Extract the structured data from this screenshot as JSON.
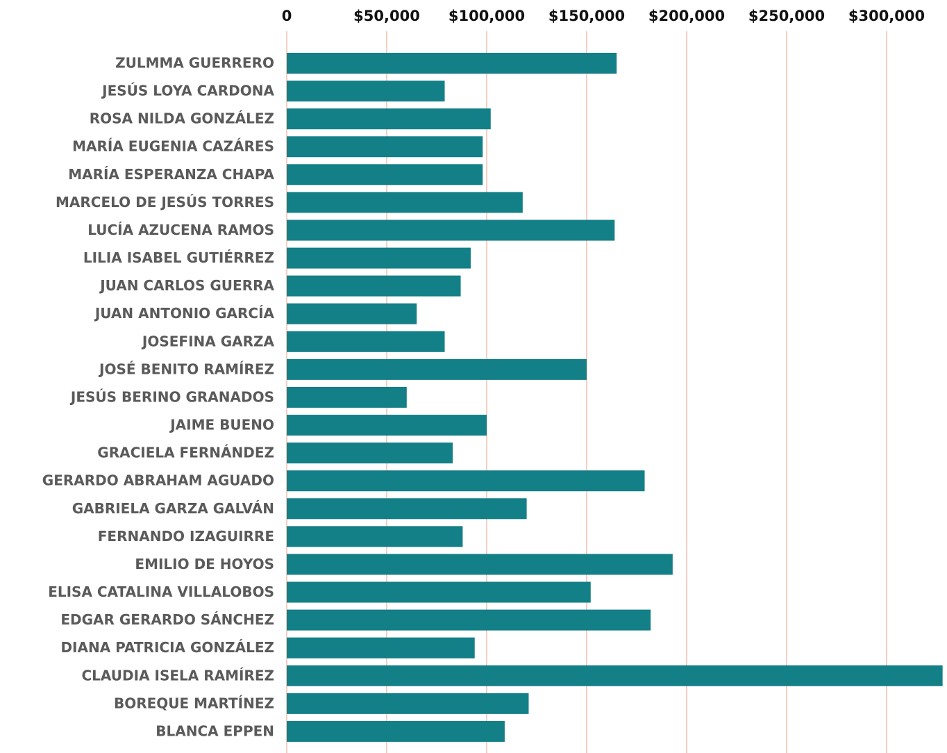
{
  "chart_data": {
    "type": "bar",
    "orientation": "horizontal",
    "categories": [
      "ZULMMA GUERRERO",
      "JESÚS LOYA CARDONA",
      "ROSA NILDA GONZÁLEZ",
      "MARÍA EUGENIA CAZÁRES",
      "MARÍA ESPERANZA CHAPA",
      "MARCELO DE JESÚS TORRES",
      "LUCÍA AZUCENA RAMOS",
      "LILIA ISABEL GUTIÉRREZ",
      "JUAN CARLOS GUERRA",
      "JUAN ANTONIO GARCÍA",
      "JOSEFINA GARZA",
      "JOSÉ BENITO RAMÍREZ",
      "JESÚS BERINO GRANADOS",
      "JAIME BUENO",
      "GRACIELA FERNÁNDEZ",
      "GERARDO ABRAHAM AGUADO",
      "GABRIELA GARZA GALVÁN",
      "FERNANDO IZAGUIRRE",
      "EMILIO DE HOYOS",
      "ELISA CATALINA VILLALOBOS",
      "EDGAR GERARDO SÁNCHEZ",
      "DIANA PATRICIA GONZÁLEZ",
      "CLAUDIA ISELA RAMÍREZ",
      "BOREQUE MARTÍNEZ",
      "BLANCA EPPEN"
    ],
    "values": [
      165000,
      79000,
      102000,
      98000,
      98000,
      118000,
      164000,
      92000,
      87000,
      65000,
      79000,
      150000,
      60000,
      100000,
      83000,
      179000,
      120000,
      88000,
      193000,
      152000,
      182000,
      94000,
      328000,
      121000,
      109000
    ],
    "color": "#137f86",
    "xlim": [
      0,
      330000
    ],
    "xticks": [
      0,
      {
        "value": 50000,
        "label": "$50,000"
      },
      {
        "value": 100000,
        "label": "$100,000"
      },
      {
        "value": 150000,
        "label": "$150,000"
      },
      {
        "value": 200000,
        "label": "$200,000"
      },
      {
        "value": 250000,
        "label": "$250,000"
      },
      {
        "value": 300000,
        "label": "$300,000"
      }
    ],
    "grid": true,
    "grid_color": "#f2bfae"
  }
}
